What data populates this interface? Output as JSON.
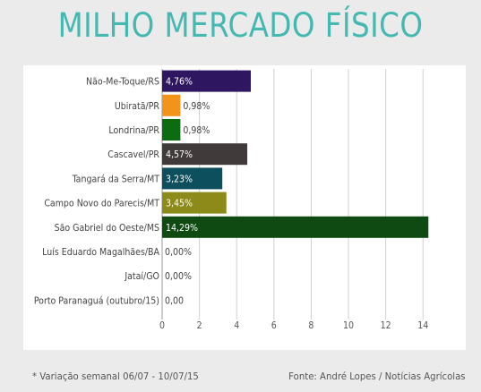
{
  "title": "MILHO MERCADO FÍSICO",
  "footnote": "* Variação semanal 06/07 - 10/07/15",
  "source": "Fonte: André Lopes / Notícias Agrícolas",
  "chart_data": {
    "type": "bar",
    "orientation": "horizontal",
    "title": "MILHO MERCADO FÍSICO",
    "categories": [
      "Não-Me-Toque/RS",
      "Ubiratã/PR",
      "Londrina/PR",
      "Cascavel/PR",
      "Tangará da Serra/MT",
      "Campo Novo do Parecis/MT",
      "São Gabriel do Oeste/MS",
      "Luís Eduardo Magalhães/BA",
      "Jataí/GO",
      "Porto Paranaguá (outubro/15)"
    ],
    "values": [
      4.76,
      0.98,
      0.98,
      4.57,
      3.23,
      3.45,
      14.29,
      0.0,
      0.0,
      0.0
    ],
    "data_labels": [
      "4,76%",
      "0,98%",
      "0,98%",
      "4,57%",
      "3,23%",
      "3,45%",
      "14,29%",
      "0,00%",
      "0,00%",
      "0,00"
    ],
    "colors": [
      "#2e1660",
      "#f29419",
      "#0d6b12",
      "#403a3a",
      "#0e4f5e",
      "#8c8a18",
      "#0f4a13",
      "#cccccc",
      "#cccccc",
      "#cccccc"
    ],
    "label_inside": [
      true,
      false,
      false,
      true,
      true,
      true,
      true,
      false,
      false,
      false
    ],
    "xticks": [
      0,
      2,
      4,
      6,
      8,
      10,
      12,
      14
    ],
    "xlim": [
      0,
      15.5
    ],
    "grid": true,
    "xlabel": "",
    "ylabel": ""
  }
}
